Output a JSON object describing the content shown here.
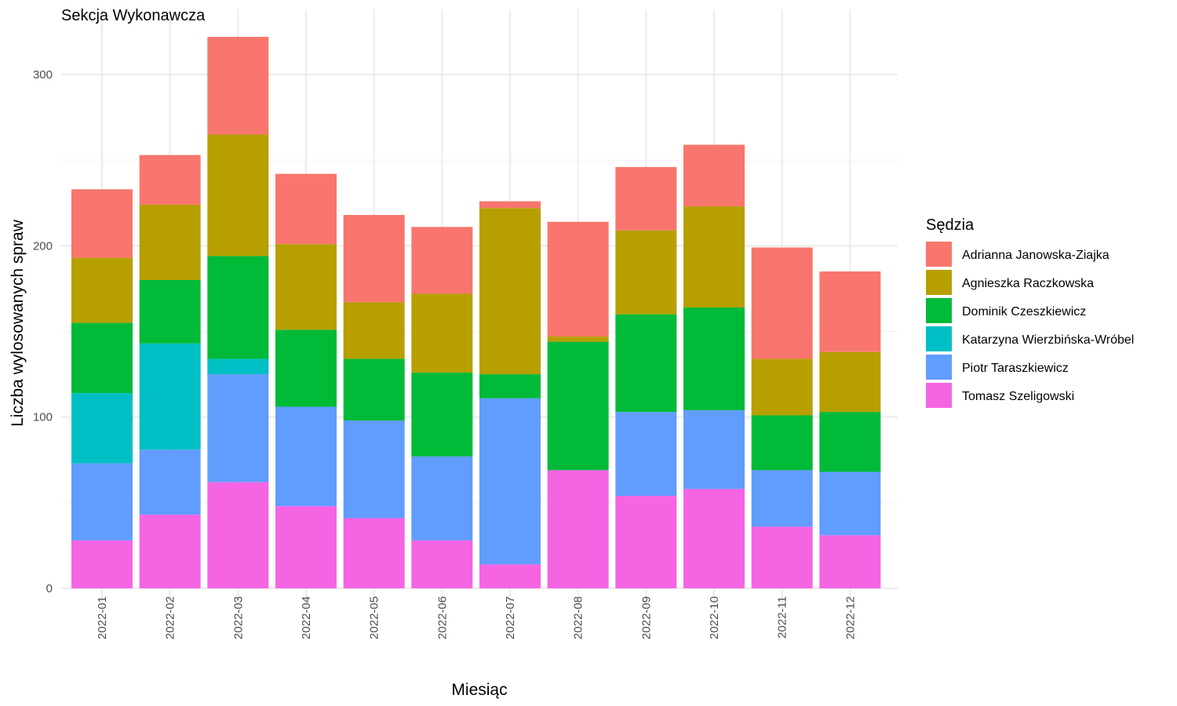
{
  "chart_data": {
    "type": "bar",
    "stacked": true,
    "title": "Sekcja Wykonawcza",
    "xlabel": "Miesiąc",
    "ylabel": "Liczba wylosowanych spraw",
    "ylim": [
      0,
      330
    ],
    "yticks": [
      0,
      100,
      200,
      300
    ],
    "grid": true,
    "legend_title": "Sędzia",
    "legend_position": "right",
    "categories": [
      "2022-01",
      "2022-02",
      "2022-03",
      "2022-04",
      "2022-05",
      "2022-06",
      "2022-07",
      "2022-08",
      "2022-09",
      "2022-10",
      "2022-11",
      "2022-12"
    ],
    "series": [
      {
        "name": "Tomasz Szeligowski",
        "color": "#F564E3",
        "values": [
          28,
          43,
          62,
          48,
          41,
          28,
          14,
          69,
          54,
          58,
          36,
          31
        ]
      },
      {
        "name": "Piotr Taraszkiewicz",
        "color": "#619CFF",
        "values": [
          45,
          38,
          63,
          58,
          57,
          49,
          97,
          0,
          49,
          46,
          33,
          37
        ]
      },
      {
        "name": "Katarzyna Wierzbińska-Wróbel",
        "color": "#00BFC4",
        "values": [
          41,
          62,
          9,
          0,
          0,
          0,
          0,
          0,
          0,
          0,
          0,
          0
        ]
      },
      {
        "name": "Dominik Czeszkiewicz",
        "color": "#00BA38",
        "values": [
          41,
          37,
          60,
          45,
          36,
          49,
          14,
          75,
          57,
          60,
          32,
          35
        ]
      },
      {
        "name": "Agnieszka Raczkowska",
        "color": "#B79F00",
        "values": [
          38,
          44,
          71,
          50,
          33,
          46,
          97,
          3,
          49,
          59,
          33,
          35
        ]
      },
      {
        "name": "Adrianna Janowska-Ziajka",
        "color": "#F8766D",
        "values": [
          40,
          29,
          57,
          41,
          51,
          39,
          4,
          67,
          37,
          36,
          65,
          47
        ]
      }
    ],
    "legend_order": [
      "Adrianna Janowska-Ziajka",
      "Agnieszka Raczkowska",
      "Dominik Czeszkiewicz",
      "Katarzyna Wierzbińska-Wróbel",
      "Piotr Taraszkiewicz",
      "Tomasz Szeligowski"
    ]
  }
}
